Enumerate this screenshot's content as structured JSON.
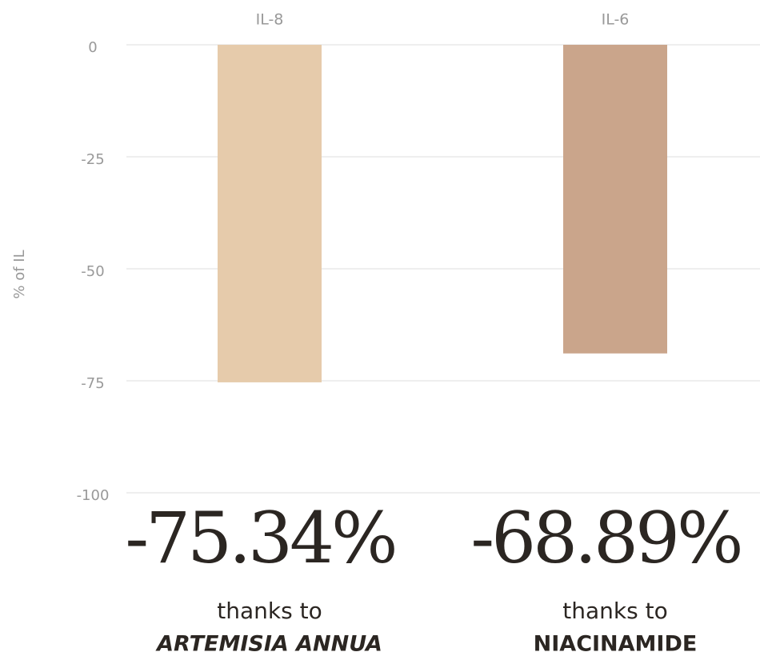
{
  "chart_data": {
    "type": "bar",
    "categories": [
      "IL-8",
      "IL-6"
    ],
    "values": [
      -75.34,
      -68.89
    ],
    "value_labels": [
      "-75.34%",
      "-68.89%"
    ],
    "colors": [
      "#e6cbab",
      "#caa58b"
    ],
    "y_label": "% of IL",
    "ylim": [
      -100,
      0
    ],
    "yticks": [
      0,
      -25,
      -50,
      -75,
      -100
    ],
    "grid": true,
    "annotations": [
      {
        "text": "thanks to",
        "ingredient": "ARTEMISIA ANNUA"
      },
      {
        "text": "thanks to",
        "ingredient": "NIACINAMIDE"
      }
    ]
  }
}
